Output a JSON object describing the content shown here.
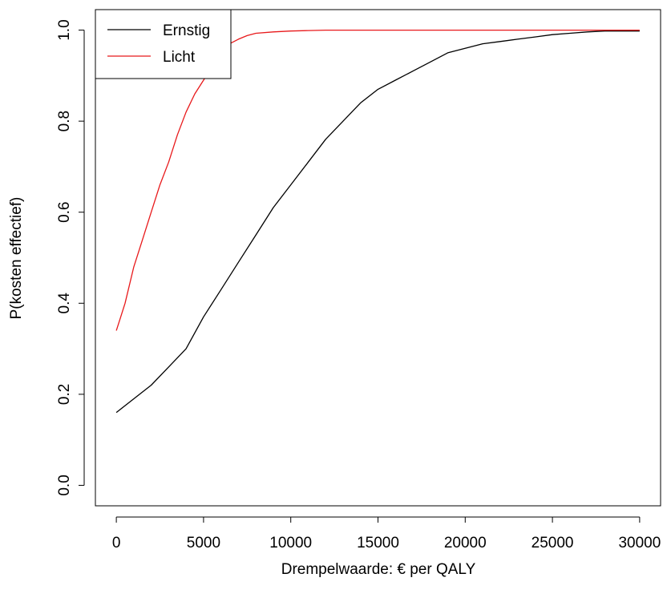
{
  "chart_data": {
    "type": "line",
    "title": "",
    "xlabel": "Drempelwaarde: € per QALY",
    "ylabel": "P(kosten effectief)",
    "xlim": [
      -1200,
      31200
    ],
    "ylim": [
      -0.045,
      1.045
    ],
    "xticks": [
      0,
      5000,
      10000,
      15000,
      20000,
      25000,
      30000
    ],
    "yticks": [
      0.0,
      0.2,
      0.4,
      0.6,
      0.8,
      1.0
    ],
    "xtick_labels": [
      "0",
      "5000",
      "10000",
      "15000",
      "20000",
      "25000",
      "30000"
    ],
    "ytick_labels": [
      "0.0",
      "0.2",
      "0.4",
      "0.6",
      "0.8",
      "1.0"
    ],
    "grid": false,
    "legend": {
      "position": "top-left",
      "entries": [
        "Ernstig",
        "Licht"
      ]
    },
    "series": [
      {
        "name": "Ernstig",
        "color": "#000000",
        "x": [
          0,
          1000,
          2000,
          3000,
          4000,
          5000,
          6000,
          7000,
          8000,
          9000,
          10000,
          11000,
          12000,
          13000,
          14000,
          15000,
          16000,
          17000,
          18000,
          19000,
          20000,
          21000,
          22000,
          23000,
          24000,
          25000,
          26000,
          27000,
          28000,
          29000,
          30000
        ],
        "values": [
          0.16,
          0.19,
          0.22,
          0.26,
          0.3,
          0.37,
          0.43,
          0.49,
          0.55,
          0.61,
          0.66,
          0.71,
          0.76,
          0.8,
          0.84,
          0.87,
          0.89,
          0.91,
          0.93,
          0.95,
          0.96,
          0.97,
          0.975,
          0.98,
          0.985,
          0.99,
          0.993,
          0.996,
          0.998,
          0.998,
          0.998
        ]
      },
      {
        "name": "Licht",
        "color": "#e8191b",
        "x": [
          0,
          250,
          500,
          1000,
          1500,
          2000,
          2500,
          3000,
          3500,
          4000,
          4500,
          5000,
          5500,
          6000,
          6500,
          7000,
          7500,
          8000,
          9000,
          10000,
          11000,
          12000,
          15000,
          20000,
          25000,
          30000
        ],
        "values": [
          0.34,
          0.37,
          0.4,
          0.48,
          0.54,
          0.6,
          0.66,
          0.71,
          0.77,
          0.82,
          0.86,
          0.89,
          0.92,
          0.95,
          0.97,
          0.98,
          0.988,
          0.993,
          0.996,
          0.998,
          0.999,
          1.0,
          1.0,
          1.0,
          1.0,
          1.0
        ]
      }
    ]
  }
}
